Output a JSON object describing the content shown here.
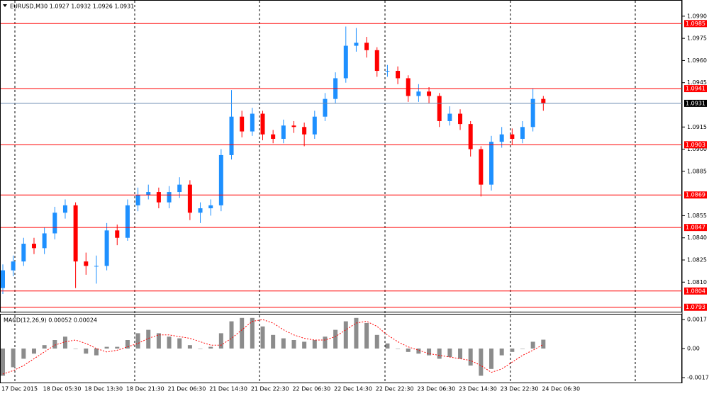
{
  "chart_data": [
    {
      "type": "candlestick",
      "title": "EURUSD,M30  1.0927 1.0932 1.0926 1.0931",
      "categories": [
        "17 Dec 2015",
        null,
        null,
        null,
        "18 Dec 05:30",
        null,
        null,
        null,
        "18 Dec 13:30",
        null,
        null,
        null,
        "18 Dec 21:30",
        null,
        null,
        null,
        "21 Dec 06:30",
        null,
        null,
        null,
        "21 Dec 14:30",
        null,
        null,
        null,
        "21 Dec 22:30",
        null,
        null,
        null,
        "22 Dec 06:30",
        null,
        null,
        null,
        "22 Dec 14:30",
        null,
        null,
        null,
        "22 Dec 22:30",
        null,
        null,
        null,
        "23 Dec 06:30",
        null,
        null,
        null,
        "23 Dec 14:30",
        null,
        null,
        null,
        "23 Dec 22:30",
        null,
        null,
        null,
        "24 Dec 06:30"
      ],
      "open": [
        1.0806,
        1.0818,
        1.0824,
        1.0836,
        1.0833,
        1.0843,
        1.0857,
        1.0862,
        1.0824,
        1.0821,
        1.0821,
        1.0845,
        1.084,
        1.0862,
        1.0869,
        1.0871,
        1.0864,
        1.0871,
        1.0876,
        1.0857,
        1.086,
        1.0862,
        1.0896,
        1.0922,
        1.0912,
        1.0924,
        1.091,
        1.0907,
        1.0916,
        1.0915,
        1.091,
        1.0922,
        1.0934,
        1.0948,
        1.097,
        1.0972,
        1.0967,
        1.0953,
        1.0953,
        1.0948,
        1.0936,
        1.0939,
        1.0936,
        1.0919,
        1.0924,
        1.0917,
        1.09,
        1.0876,
        1.0905,
        1.091,
        1.0907,
        1.0915,
        1.0934
      ],
      "high": [
        1.0822,
        1.0828,
        1.084,
        1.084,
        1.0847,
        1.0861,
        1.0866,
        1.0864,
        1.083,
        1.0828,
        1.085,
        1.0849,
        1.0866,
        1.0874,
        1.0876,
        1.0874,
        1.0875,
        1.0881,
        1.0879,
        1.0864,
        1.0866,
        1.09,
        1.094,
        1.0926,
        1.0928,
        1.0926,
        1.0913,
        1.092,
        1.0919,
        1.0918,
        1.0926,
        1.0938,
        1.0952,
        1.0983,
        1.0982,
        1.0976,
        1.0969,
        1.0957,
        1.0956,
        1.095,
        1.0944,
        1.0942,
        1.0938,
        1.0929,
        1.0927,
        1.0919,
        1.0902,
        1.0909,
        1.0915,
        1.0914,
        1.0919,
        1.0941,
        1.0936
      ],
      "low": [
        1.0802,
        1.0814,
        1.0821,
        1.0829,
        1.0829,
        1.0839,
        1.0853,
        1.0806,
        1.0815,
        1.0809,
        1.0818,
        1.0835,
        1.0838,
        1.0858,
        1.0866,
        1.086,
        1.086,
        1.0867,
        1.0852,
        1.085,
        1.0855,
        1.0858,
        1.0893,
        1.0908,
        1.0909,
        1.0906,
        1.0904,
        1.0904,
        1.0911,
        1.0902,
        1.0907,
        1.0919,
        1.0931,
        1.0945,
        1.0966,
        1.0962,
        1.0949,
        1.0949,
        1.0944,
        1.0932,
        1.0932,
        1.0931,
        1.0915,
        1.0916,
        1.0913,
        1.0895,
        1.0868,
        1.0872,
        1.0901,
        1.0903,
        1.0904,
        1.0912,
        1.0926
      ],
      "close": [
        1.0818,
        1.0824,
        1.0836,
        1.0833,
        1.0843,
        1.0857,
        1.0862,
        1.0824,
        1.0821,
        1.0821,
        1.0845,
        1.084,
        1.0862,
        1.0869,
        1.0871,
        1.0864,
        1.0871,
        1.0876,
        1.0857,
        1.086,
        1.0862,
        1.0896,
        1.0922,
        1.0912,
        1.0924,
        1.091,
        1.0907,
        1.0916,
        1.0915,
        1.091,
        1.0922,
        1.0934,
        1.0948,
        1.097,
        1.0972,
        1.0967,
        1.0953,
        1.0953,
        1.0948,
        1.0936,
        1.0939,
        1.0936,
        1.0919,
        1.0924,
        1.0917,
        1.09,
        1.0876,
        1.0905,
        1.091,
        1.0907,
        1.0915,
        1.0934,
        1.0931
      ],
      "up_color": "#1e90ff",
      "down_color": "#ff0000",
      "ylim": [
        1.079,
        1.1
      ],
      "yticks": [
        {
          "value": 1.099,
          "label": "1.0990"
        },
        1.0975,
        {
          "value": 1.096,
          "label": "1.0960"
        },
        1.0945,
        1.0915,
        {
          "value": 1.09,
          "label": "1.0900"
        },
        1.0885,
        1.0855,
        {
          "value": 1.084,
          "label": "1.0840"
        },
        1.0825,
        {
          "value": 1.081,
          "label": "1.0810"
        }
      ],
      "levels": [
        1.0985,
        1.0941,
        1.0903,
        1.0869,
        1.0847,
        1.0804,
        1.0793
      ],
      "level_color": "#ff0000",
      "price": 1.0931,
      "price_color": "#6b8bb0"
    },
    {
      "type": "macd",
      "title": "MACD(12,26,9) 0.00052 0.00024",
      "series": [
        {
          "kind": "histogram",
          "color": "#8c8c8c",
          "values": [
            -0.0016,
            -0.0011,
            -0.0006,
            -0.0003,
            0.0002,
            0.0005,
            0.0007,
            0,
            -0.0003,
            -0.0004,
            0.0001,
            0.0001,
            0.0005,
            0.0009,
            0.0011,
            0.0009,
            0.0007,
            0.0006,
            0.0002,
            0,
            0.0001,
            0.0009,
            0.0016,
            0.0018,
            0.0018,
            0.0013,
            0.0008,
            0.0006,
            0.0005,
            0.0004,
            0.0005,
            0.0007,
            0.0011,
            0.0016,
            0.0018,
            0.0015,
            0.0008,
            0.0003,
            0,
            -0.0002,
            -0.0003,
            -0.0004,
            -0.0006,
            -0.0005,
            -0.0006,
            -0.001,
            -0.0016,
            -0.0012,
            -0.0004,
            -0.0002,
            0,
            0.0004,
            0.00052
          ]
        },
        {
          "kind": "line",
          "color": "#ff0000",
          "values": [
            -0.0015,
            -0.0013,
            -0.001,
            -0.0006,
            -0.0002,
            0.0002,
            0.0004,
            0.0005,
            0.0003,
            0,
            -0.0002,
            -0.0001,
            0.0001,
            0.0003,
            0.0006,
            0.0008,
            0.0008,
            0.0007,
            0.0006,
            0.0004,
            0.0002,
            0.0002,
            0.0006,
            0.0011,
            0.0016,
            0.0017,
            0.0015,
            0.0011,
            0.0008,
            0.0006,
            0.0005,
            0.0005,
            0.0007,
            0.0011,
            0.0015,
            0.0016,
            0.0013,
            0.0008,
            0.0004,
            0.0001,
            -0.0001,
            -0.0003,
            -0.0004,
            -0.0005,
            -0.0006,
            -0.0007,
            -0.001,
            -0.0014,
            -0.0012,
            -0.0008,
            -0.0004,
            -0.0001,
            0.00024
          ]
        }
      ],
      "ylim": [
        -0.002,
        0.002
      ],
      "yticks": [
        0.0017,
        {
          "value": 0,
          "label": "0.00"
        },
        -0.00171
      ]
    }
  ]
}
